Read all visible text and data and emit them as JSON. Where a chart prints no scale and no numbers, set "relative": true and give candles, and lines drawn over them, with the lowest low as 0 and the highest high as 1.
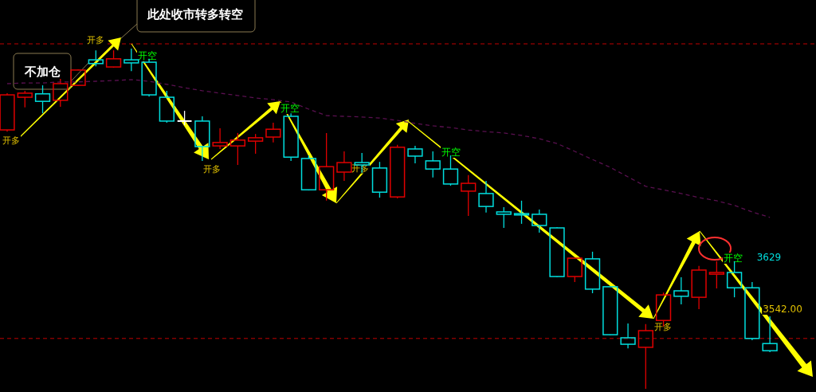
{
  "chart_data": {
    "type": "candlestick",
    "relative": true,
    "categories": [
      null,
      null,
      null,
      null,
      null,
      null,
      null,
      null,
      null,
      null,
      null,
      null,
      null,
      null,
      null,
      null,
      null,
      null,
      null,
      null,
      null,
      null,
      null,
      null,
      null,
      null,
      null,
      null,
      null,
      null,
      null,
      null,
      null,
      null,
      null,
      null,
      null,
      null,
      null,
      null,
      null,
      null,
      null,
      null
    ],
    "ohlc": [
      [
        0.761,
        0.869,
        0.756,
        0.864
      ],
      [
        0.857,
        0.876,
        0.827,
        0.869
      ],
      [
        0.867,
        0.892,
        0.81,
        0.845
      ],
      [
        0.848,
        0.911,
        0.829,
        0.897
      ],
      [
        0.892,
        0.939,
        0.89,
        0.937
      ],
      [
        0.967,
        0.995,
        0.948,
        0.956
      ],
      [
        0.946,
        0.995,
        0.944,
        0.97
      ],
      [
        0.967,
        1,
        0.934,
        0.958
      ],
      [
        0.96,
        0.97,
        0.859,
        0.864
      ],
      [
        0.857,
        0.876,
        0.782,
        0.787
      ],
      [
        0.787,
        0.817,
        0.775,
        0.787
      ],
      [
        0.787,
        0.801,
        0.67,
        0.712
      ],
      [
        0.714,
        0.766,
        0.705,
        0.724
      ],
      [
        0.714,
        0.752,
        0.658,
        0.731
      ],
      [
        0.728,
        0.749,
        0.691,
        0.738
      ],
      [
        0.74,
        0.782,
        0.724,
        0.763
      ],
      [
        0.801,
        0.81,
        0.67,
        0.681
      ],
      [
        0.677,
        0.686,
        0.583,
        0.585
      ],
      [
        0.585,
        0.752,
        0.553,
        0.653
      ],
      [
        0.637,
        0.698,
        0.611,
        0.665
      ],
      [
        0.665,
        0.693,
        0.635,
        0.658
      ],
      [
        0.649,
        0.667,
        0.562,
        0.578
      ],
      [
        0.564,
        0.717,
        0.56,
        0.71
      ],
      [
        0.705,
        0.714,
        0.663,
        0.684
      ],
      [
        0.67,
        0.698,
        0.621,
        0.646
      ],
      [
        0.646,
        0.686,
        0.597,
        0.602
      ],
      [
        0.581,
        0.628,
        0.508,
        0.604
      ],
      [
        0.574,
        0.611,
        0.518,
        0.536
      ],
      [
        0.52,
        0.534,
        0.473,
        0.513
      ],
      [
        0.515,
        0.553,
        0.485,
        0.511
      ],
      [
        0.513,
        0.527,
        0.459,
        0.48
      ],
      [
        0.473,
        0.475,
        0.328,
        0.33
      ],
      [
        0.33,
        0.384,
        0.314,
        0.384
      ],
      [
        0.382,
        0.403,
        0.281,
        0.293
      ],
      [
        0.3,
        0.3,
        0.157,
        0.159
      ],
      [
        0.15,
        0.192,
        0.119,
        0.131
      ],
      [
        0.122,
        0.19,
        0,
        0.171
      ],
      [
        0.201,
        0.283,
        0.183,
        0.276
      ],
      [
        0.288,
        0.328,
        0.248,
        0.272
      ],
      [
        0.269,
        0.361,
        0.234,
        0.349
      ],
      [
        0.337,
        0.375,
        0.295,
        0.342
      ],
      [
        0.342,
        0.375,
        0.269,
        0.297
      ],
      [
        0.297,
        0.314,
        0.143,
        0.148
      ],
      [
        0.133,
        0.213,
        0.108,
        0.112
      ]
    ],
    "colors": [
      "#e00000",
      "#e00000",
      "#00dede",
      "#e00000",
      "#e00000",
      "#00dede",
      "#e00000",
      "#00dede",
      "#00dede",
      "#00dede",
      "#ffffff",
      "#00dede",
      "#e00000",
      "#e00000",
      "#e00000",
      "#e00000",
      "#00dede",
      "#00dede",
      "#e00000",
      "#e00000",
      "#00dede",
      "#00dede",
      "#e00000",
      "#00dede",
      "#00dede",
      "#00dede",
      "#e00000",
      "#00dede",
      "#00dede",
      "#00dede",
      "#00dede",
      "#00dede",
      "#e00000",
      "#00dede",
      "#00dede",
      "#00dede",
      "#e00000",
      "#e00000",
      "#00dede",
      "#e00000",
      "#e00000",
      "#00dede",
      "#00dede",
      "#00dede"
    ],
    "series": [
      {
        "type": "line",
        "color": "#5a1050",
        "line_style": "dashed",
        "values": [
          0.897,
          0.899,
          0.899,
          0.902,
          0.902,
          0.904,
          0.906,
          0.909,
          0.904,
          0.895,
          0.885,
          0.876,
          0.869,
          0.862,
          0.855,
          0.85,
          0.843,
          0.822,
          0.803,
          0.801,
          0.799,
          0.796,
          0.789,
          0.78,
          0.773,
          0.768,
          0.761,
          0.756,
          0.752,
          0.745,
          0.735,
          0.721,
          0.698,
          0.674,
          0.651,
          0.623,
          0.595,
          0.585,
          0.574,
          0.562,
          0.553,
          0.539,
          0.52,
          0.504
        ]
      }
    ],
    "ref_lines": [
      {
        "axis": "y",
        "value": 1.014,
        "color": "#c00000",
        "line_style": "dashed"
      },
      {
        "axis": "y",
        "value": 0.148,
        "color": "#c00000",
        "line_style": "dashed"
      }
    ],
    "annotations": [
      "此处收市转多转空",
      "不加仓",
      "开多",
      "开多",
      "开空",
      "开多",
      "开空",
      "开多",
      "开空",
      "开多",
      "开空",
      "3629",
      "3542.00"
    ]
  }
}
